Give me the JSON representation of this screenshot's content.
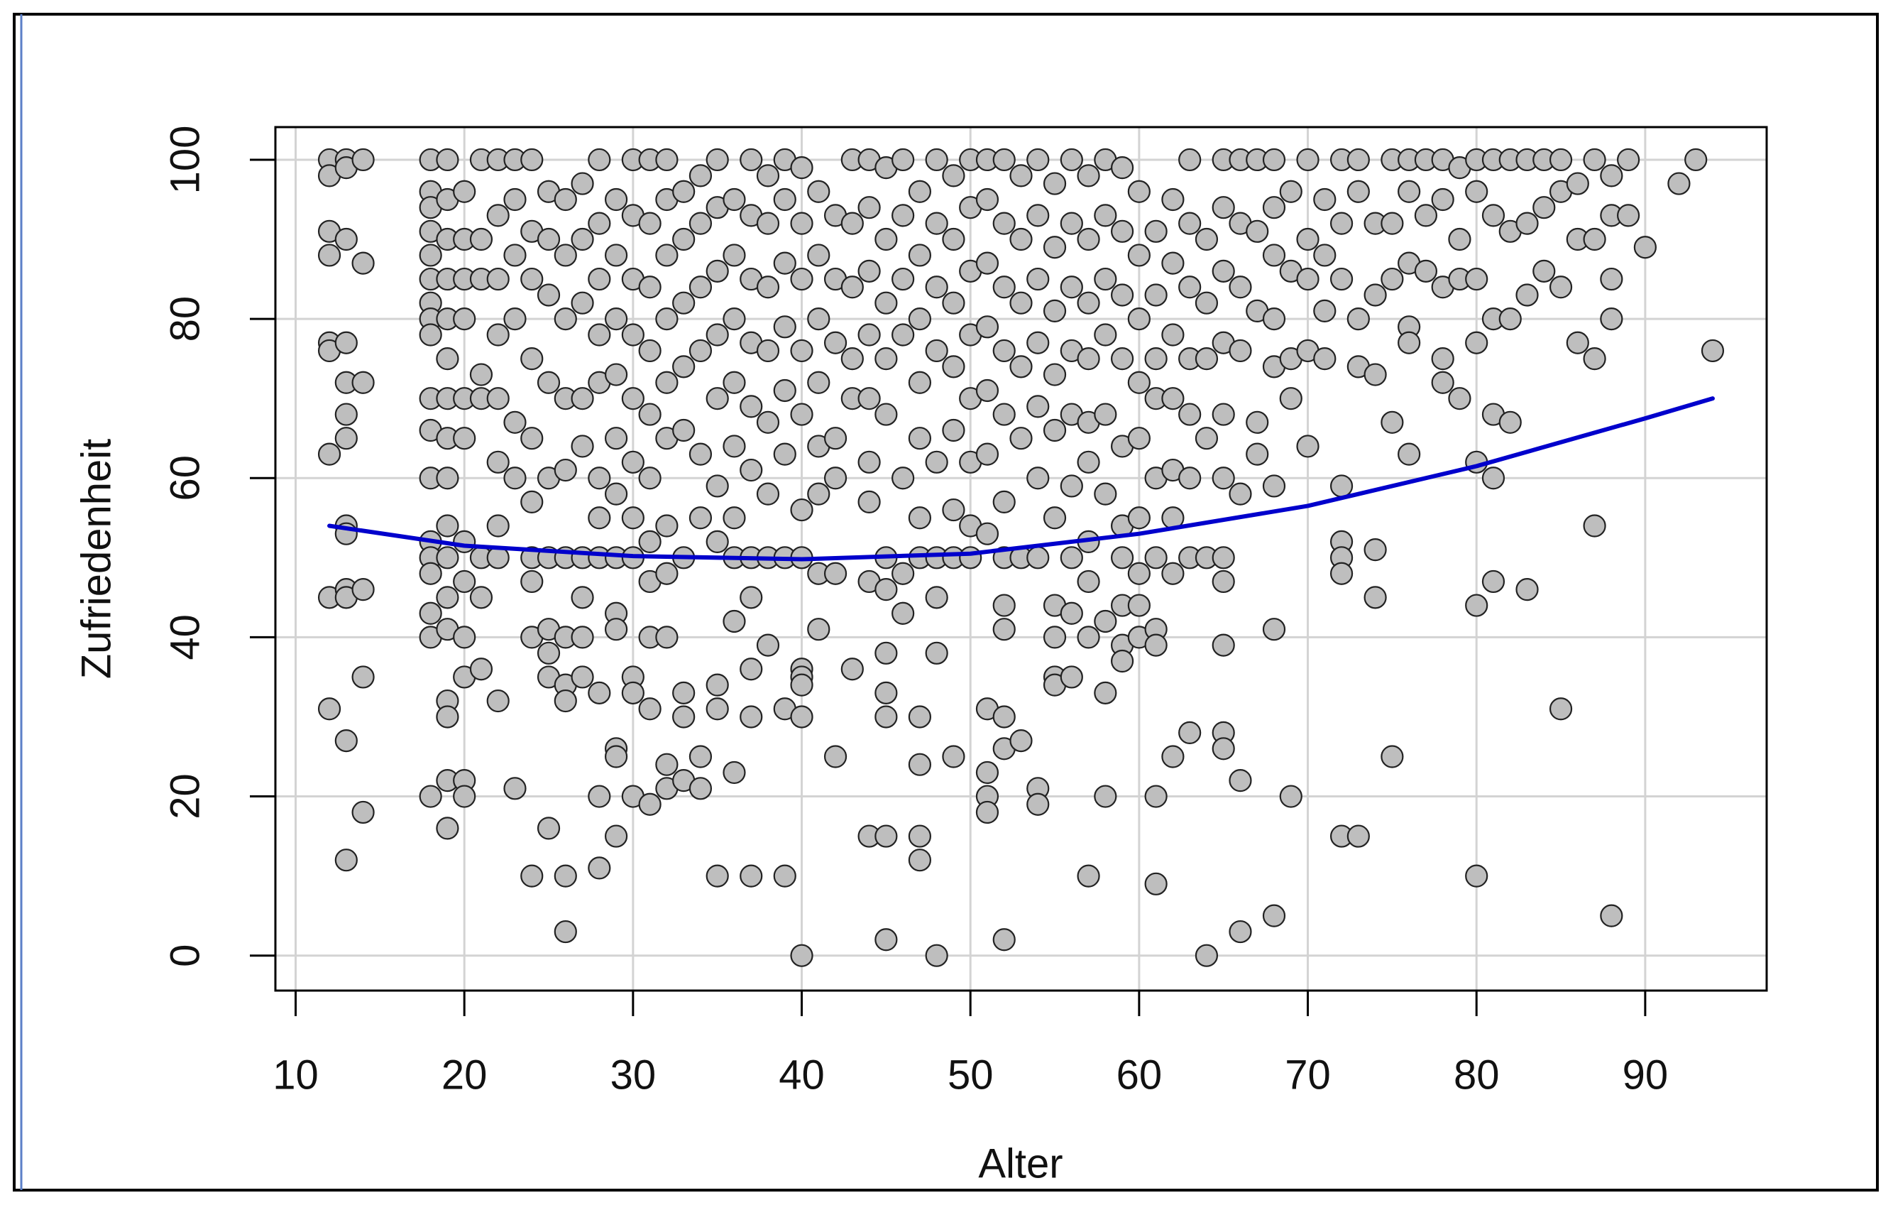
{
  "chart_data": {
    "type": "scatter",
    "xlabel": "Alter",
    "ylabel": "Zufriedenheit",
    "xlim": [
      8.8,
      97.2
    ],
    "ylim": [
      -4.4,
      104.1
    ],
    "xticks": [
      10,
      20,
      30,
      40,
      50,
      60,
      70,
      80,
      90
    ],
    "yticks": [
      0,
      20,
      40,
      60,
      80,
      100
    ],
    "grid": true,
    "series": [
      {
        "type": "scatter",
        "color": "#bebebe",
        "x": [
          12,
          12,
          12,
          12,
          12,
          12,
          12,
          12,
          12,
          13,
          13,
          13,
          13,
          13,
          13,
          13,
          13,
          13,
          13,
          13,
          13,
          13,
          14,
          14,
          14,
          14,
          14,
          14,
          18,
          18,
          18,
          18,
          18,
          18,
          18,
          18,
          18,
          18,
          18,
          18,
          18,
          18,
          18,
          18,
          18,
          18,
          19,
          19,
          19,
          19,
          19,
          19,
          19,
          19,
          19,
          19,
          19,
          19,
          19,
          19,
          19,
          19,
          19,
          20,
          20,
          20,
          20,
          20,
          20,
          20,
          20,
          20,
          20,
          20,
          20,
          21,
          21,
          21,
          21,
          21,
          21,
          21,
          21,
          22,
          22,
          22,
          22,
          22,
          22,
          22,
          22,
          22,
          23,
          23,
          23,
          23,
          23,
          23,
          23,
          24,
          24,
          24,
          24,
          24,
          24,
          24,
          24,
          24,
          24,
          25,
          25,
          25,
          25,
          25,
          25,
          25,
          25,
          25,
          25,
          26,
          26,
          26,
          26,
          26,
          26,
          26,
          26,
          26,
          26,
          26,
          27,
          27,
          27,
          27,
          27,
          27,
          27,
          27,
          27,
          28,
          28,
          28,
          28,
          28,
          28,
          28,
          28,
          28,
          28,
          28,
          29,
          29,
          29,
          29,
          29,
          29,
          29,
          29,
          29,
          29,
          29,
          29,
          30,
          30,
          30,
          30,
          30,
          30,
          30,
          30,
          30,
          30,
          30,
          31,
          31,
          31,
          31,
          31,
          31,
          31,
          31,
          31,
          31,
          31,
          32,
          32,
          32,
          32,
          32,
          32,
          32,
          32,
          32,
          32,
          32,
          33,
          33,
          33,
          33,
          33,
          33,
          33,
          33,
          33,
          34,
          34,
          34,
          34,
          34,
          34,
          34,
          34,
          35,
          35,
          35,
          35,
          35,
          35,
          35,
          35,
          35,
          35,
          36,
          36,
          36,
          36,
          36,
          36,
          36,
          36,
          36,
          37,
          37,
          37,
          37,
          37,
          37,
          37,
          37,
          37,
          37,
          37,
          38,
          38,
          38,
          38,
          38,
          38,
          38,
          38,
          39,
          39,
          39,
          39,
          39,
          39,
          39,
          39,
          39,
          40,
          40,
          40,
          40,
          40,
          40,
          40,
          40,
          40,
          40,
          40,
          40,
          41,
          41,
          41,
          41,
          41,
          41,
          41,
          41,
          42,
          42,
          42,
          42,
          42,
          42,
          42,
          43,
          43,
          43,
          43,
          43,
          43,
          44,
          44,
          44,
          44,
          44,
          44,
          44,
          44,
          44,
          45,
          45,
          45,
          45,
          45,
          45,
          45,
          45,
          45,
          45,
          45,
          45,
          46,
          46,
          46,
          46,
          46,
          46,
          46,
          47,
          47,
          47,
          47,
          47,
          47,
          47,
          47,
          47,
          47,
          47,
          48,
          48,
          48,
          48,
          48,
          48,
          48,
          48,
          48,
          49,
          49,
          49,
          49,
          49,
          49,
          49,
          49,
          50,
          50,
          50,
          50,
          50,
          50,
          50,
          50,
          51,
          51,
          51,
          51,
          51,
          51,
          51,
          51,
          51,
          51,
          51,
          52,
          52,
          52,
          52,
          52,
          52,
          52,
          52,
          52,
          52,
          52,
          52,
          53,
          53,
          53,
          53,
          53,
          53,
          53,
          54,
          54,
          54,
          54,
          54,
          54,
          54,
          54,
          54,
          55,
          55,
          55,
          55,
          55,
          55,
          55,
          55,
          55,
          55,
          56,
          56,
          56,
          56,
          56,
          56,
          56,
          56,
          56,
          57,
          57,
          57,
          57,
          57,
          57,
          57,
          57,
          57,
          57,
          58,
          58,
          58,
          58,
          58,
          58,
          58,
          58,
          58,
          59,
          59,
          59,
          59,
          59,
          59,
          59,
          59,
          59,
          59,
          60,
          60,
          60,
          60,
          60,
          60,
          60,
          60,
          60,
          61,
          61,
          61,
          61,
          61,
          61,
          61,
          61,
          61,
          61,
          62,
          62,
          62,
          62,
          62,
          62,
          62,
          62,
          63,
          63,
          63,
          63,
          63,
          63,
          63,
          63,
          64,
          64,
          64,
          64,
          64,
          64,
          65,
          65,
          65,
          65,
          65,
          65,
          65,
          65,
          65,
          65,
          65,
          66,
          66,
          66,
          66,
          66,
          66,
          66,
          67,
          67,
          67,
          67,
          67,
          68,
          68,
          68,
          68,
          68,
          68,
          68,
          68,
          69,
          69,
          69,
          69,
          69,
          70,
          70,
          70,
          70,
          70,
          71,
          71,
          71,
          71,
          72,
          72,
          72,
          72,
          72,
          72,
          72,
          72,
          73,
          73,
          73,
          73,
          73,
          74,
          74,
          74,
          74,
          74,
          75,
          75,
          75,
          75,
          75,
          76,
          76,
          76,
          76,
          76,
          76,
          77,
          77,
          77,
          78,
          78,
          78,
          78,
          78,
          79,
          79,
          79,
          79,
          80,
          80,
          80,
          80,
          80,
          80,
          80,
          81,
          81,
          81,
          81,
          81,
          81,
          82,
          82,
          82,
          82,
          83,
          83,
          83,
          83,
          84,
          84,
          84,
          85,
          85,
          85,
          85,
          86,
          86,
          86,
          87,
          87,
          87,
          87,
          88,
          88,
          88,
          88,
          88,
          89,
          89,
          90,
          92,
          93,
          94
        ],
        "values": [
          100,
          98,
          91,
          88,
          77,
          76,
          63,
          45,
          31,
          100,
          99,
          90,
          77,
          72,
          68,
          65,
          54,
          53,
          46,
          45,
          27,
          12,
          100,
          87,
          72,
          46,
          35,
          18,
          100,
          96,
          94,
          91,
          88,
          85,
          82,
          80,
          78,
          70,
          66,
          60,
          52,
          50,
          48,
          43,
          40,
          20,
          100,
          95,
          90,
          85,
          80,
          75,
          70,
          65,
          60,
          54,
          50,
          45,
          41,
          32,
          30,
          22,
          16,
          96,
          90,
          85,
          80,
          70,
          65,
          52,
          47,
          40,
          35,
          22,
          20,
          100,
          90,
          85,
          73,
          70,
          50,
          45,
          36,
          100,
          93,
          85,
          78,
          70,
          62,
          54,
          50,
          32,
          100,
          95,
          88,
          80,
          67,
          60,
          21,
          100,
          91,
          85,
          75,
          65,
          57,
          50,
          47,
          40,
          10,
          96,
          90,
          83,
          72,
          60,
          50,
          41,
          38,
          35,
          16,
          95,
          88,
          80,
          70,
          61,
          50,
          40,
          34,
          32,
          10,
          3,
          97,
          90,
          82,
          70,
          64,
          50,
          45,
          40,
          35,
          100,
          92,
          85,
          78,
          72,
          60,
          55,
          50,
          33,
          20,
          11,
          95,
          88,
          80,
          73,
          65,
          58,
          50,
          43,
          41,
          26,
          25,
          15,
          100,
          93,
          85,
          78,
          70,
          62,
          55,
          50,
          35,
          33,
          20,
          100,
          92,
          84,
          76,
          68,
          60,
          52,
          47,
          40,
          31,
          19,
          100,
          95,
          88,
          80,
          72,
          65,
          54,
          48,
          40,
          24,
          21,
          96,
          90,
          82,
          74,
          66,
          50,
          33,
          30,
          22,
          98,
          92,
          84,
          76,
          63,
          55,
          25,
          21,
          100,
          94,
          86,
          78,
          70,
          59,
          52,
          34,
          31,
          10,
          95,
          88,
          80,
          72,
          64,
          55,
          50,
          42,
          23,
          100,
          93,
          85,
          77,
          69,
          61,
          50,
          45,
          36,
          30,
          10,
          98,
          92,
          84,
          76,
          67,
          58,
          50,
          39,
          100,
          95,
          87,
          79,
          71,
          63,
          50,
          31,
          10,
          99,
          92,
          85,
          76,
          68,
          56,
          50,
          36,
          35,
          34,
          30,
          0,
          96,
          88,
          80,
          72,
          64,
          58,
          48,
          41,
          93,
          85,
          77,
          65,
          60,
          48,
          25,
          100,
          92,
          84,
          75,
          70,
          36,
          100,
          94,
          86,
          78,
          70,
          62,
          57,
          47,
          15,
          99,
          90,
          82,
          75,
          68,
          50,
          46,
          38,
          33,
          30,
          15,
          2,
          100,
          93,
          85,
          78,
          60,
          48,
          43,
          96,
          88,
          80,
          72,
          65,
          55,
          50,
          30,
          24,
          15,
          12,
          100,
          92,
          84,
          76,
          62,
          50,
          45,
          38,
          0,
          98,
          90,
          82,
          74,
          66,
          56,
          50,
          25,
          100,
          94,
          86,
          78,
          70,
          62,
          54,
          50,
          100,
          95,
          87,
          79,
          71,
          63,
          53,
          31,
          23,
          20,
          18,
          100,
          92,
          84,
          76,
          68,
          57,
          50,
          44,
          41,
          30,
          26,
          2,
          98,
          90,
          82,
          74,
          65,
          50,
          27,
          100,
          93,
          85,
          77,
          69,
          60,
          50,
          21,
          19,
          97,
          89,
          81,
          73,
          66,
          55,
          44,
          40,
          35,
          34,
          100,
          92,
          84,
          76,
          68,
          59,
          50,
          43,
          35,
          98,
          90,
          82,
          75,
          67,
          62,
          52,
          47,
          40,
          10,
          100,
          93,
          85,
          78,
          68,
          58,
          42,
          33,
          20,
          99,
          91,
          83,
          75,
          64,
          54,
          50,
          44,
          39,
          37,
          96,
          88,
          80,
          72,
          65,
          55,
          48,
          44,
          40,
          91,
          83,
          75,
          70,
          60,
          50,
          41,
          39,
          20,
          9,
          95,
          87,
          78,
          70,
          61,
          55,
          48,
          25,
          100,
          92,
          84,
          75,
          68,
          60,
          50,
          28,
          90,
          82,
          75,
          65,
          50,
          0,
          100,
          94,
          86,
          77,
          68,
          60,
          50,
          47,
          39,
          28,
          26,
          100,
          92,
          84,
          76,
          58,
          22,
          3,
          100,
          91,
          81,
          67,
          63,
          100,
          94,
          88,
          80,
          74,
          59,
          41,
          5,
          96,
          86,
          75,
          70,
          20,
          100,
          90,
          85,
          76,
          64,
          95,
          88,
          81,
          75,
          100,
          92,
          85,
          59,
          52,
          50,
          48,
          15,
          100,
          96,
          80,
          74,
          15,
          92,
          83,
          73,
          51,
          45,
          100,
          92,
          85,
          67,
          25,
          100,
          96,
          87,
          79,
          77,
          63,
          100,
          93,
          86,
          100,
          95,
          84,
          75,
          72,
          99,
          90,
          85,
          70,
          100,
          96,
          85,
          77,
          62,
          44,
          10,
          100,
          93,
          80,
          68,
          60,
          47,
          100,
          91,
          80,
          67,
          100,
          92,
          83,
          46,
          100,
          94,
          86,
          100,
          96,
          84,
          31,
          97,
          90,
          77,
          100,
          90,
          75,
          54,
          98,
          93,
          85,
          80,
          5,
          100,
          93,
          89,
          97,
          100,
          76
        ]
      },
      {
        "type": "line",
        "color": "#0000cc",
        "x": [
          12,
          20,
          30,
          40,
          50,
          60,
          70,
          80,
          90,
          94
        ],
        "values": [
          54,
          51.5,
          50.2,
          49.8,
          50.5,
          53,
          56.5,
          61.5,
          67.5,
          70
        ]
      }
    ]
  }
}
